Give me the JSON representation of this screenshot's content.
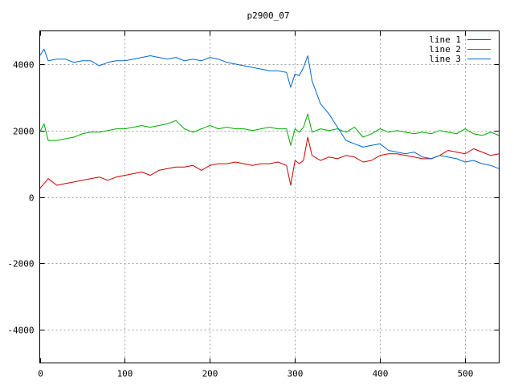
{
  "chart_data": {
    "type": "line",
    "title": "p2900_07",
    "xlabel": "",
    "ylabel": "",
    "xlim": [
      0,
      540
    ],
    "ylim": [
      -5000,
      5000
    ],
    "xticks": [
      0,
      100,
      200,
      300,
      400,
      500
    ],
    "yticks": [
      -4000,
      -2000,
      0,
      2000,
      4000
    ],
    "grid": true,
    "legend_position": "top-right",
    "series": [
      {
        "name": "line 1",
        "color": "#cc0000",
        "x": [
          0,
          5,
          10,
          20,
          30,
          40,
          50,
          60,
          70,
          80,
          90,
          100,
          110,
          120,
          130,
          140,
          150,
          160,
          170,
          180,
          190,
          200,
          210,
          220,
          230,
          240,
          250,
          260,
          270,
          280,
          290,
          295,
          300,
          305,
          310,
          315,
          320,
          330,
          340,
          350,
          360,
          370,
          380,
          390,
          400,
          410,
          420,
          430,
          440,
          450,
          460,
          470,
          480,
          490,
          500,
          510,
          520,
          530,
          540
        ],
        "values": [
          250,
          400,
          550,
          350,
          400,
          450,
          500,
          550,
          600,
          500,
          600,
          650,
          700,
          750,
          650,
          800,
          850,
          900,
          900,
          950,
          800,
          950,
          1000,
          1000,
          1050,
          1000,
          950,
          1000,
          1000,
          1050,
          950,
          350,
          1100,
          1000,
          1100,
          1800,
          1250,
          1100,
          1200,
          1150,
          1250,
          1200,
          1050,
          1100,
          1250,
          1300,
          1300,
          1250,
          1200,
          1150,
          1150,
          1250,
          1400,
          1350,
          1300,
          1450,
          1350,
          1250,
          1300
        ]
      },
      {
        "name": "line 2",
        "color": "#00aa00",
        "x": [
          0,
          5,
          10,
          20,
          30,
          40,
          50,
          60,
          70,
          80,
          90,
          100,
          110,
          120,
          130,
          140,
          150,
          160,
          170,
          180,
          190,
          200,
          210,
          220,
          230,
          240,
          250,
          260,
          270,
          280,
          290,
          295,
          300,
          305,
          310,
          315,
          320,
          330,
          340,
          350,
          360,
          370,
          380,
          390,
          400,
          410,
          420,
          430,
          440,
          450,
          460,
          470,
          480,
          490,
          500,
          510,
          520,
          530,
          540
        ],
        "values": [
          1950,
          2200,
          1700,
          1700,
          1750,
          1800,
          1900,
          1950,
          1950,
          2000,
          2050,
          2050,
          2100,
          2150,
          2100,
          2150,
          2200,
          2300,
          2050,
          1950,
          2050,
          2150,
          2050,
          2100,
          2050,
          2050,
          2000,
          2050,
          2100,
          2050,
          2050,
          1550,
          2050,
          1950,
          2100,
          2500,
          1950,
          2050,
          2000,
          2050,
          1950,
          2100,
          1800,
          1900,
          2050,
          1950,
          2000,
          1950,
          1900,
          1950,
          1900,
          2000,
          1950,
          1900,
          2050,
          1900,
          1850,
          1950,
          1850
        ]
      },
      {
        "name": "line 3",
        "color": "#0066cc",
        "x": [
          0,
          5,
          10,
          20,
          30,
          40,
          50,
          60,
          70,
          80,
          90,
          100,
          110,
          120,
          130,
          140,
          150,
          160,
          170,
          180,
          190,
          200,
          210,
          220,
          230,
          240,
          250,
          260,
          270,
          280,
          290,
          295,
          300,
          305,
          310,
          315,
          320,
          330,
          340,
          350,
          360,
          370,
          380,
          390,
          400,
          410,
          420,
          430,
          440,
          450,
          460,
          470,
          480,
          490,
          500,
          510,
          520,
          530,
          540
        ],
        "values": [
          4250,
          4450,
          4100,
          4150,
          4150,
          4050,
          4100,
          4100,
          3950,
          4050,
          4100,
          4100,
          4150,
          4200,
          4250,
          4200,
          4150,
          4200,
          4100,
          4150,
          4100,
          4200,
          4150,
          4050,
          4000,
          3950,
          3900,
          3850,
          3800,
          3800,
          3750,
          3300,
          3700,
          3650,
          3900,
          4250,
          3500,
          2800,
          2500,
          2100,
          1700,
          1600,
          1500,
          1550,
          1600,
          1400,
          1350,
          1300,
          1350,
          1200,
          1150,
          1250,
          1200,
          1150,
          1050,
          1100,
          1000,
          950,
          850
        ]
      }
    ]
  }
}
